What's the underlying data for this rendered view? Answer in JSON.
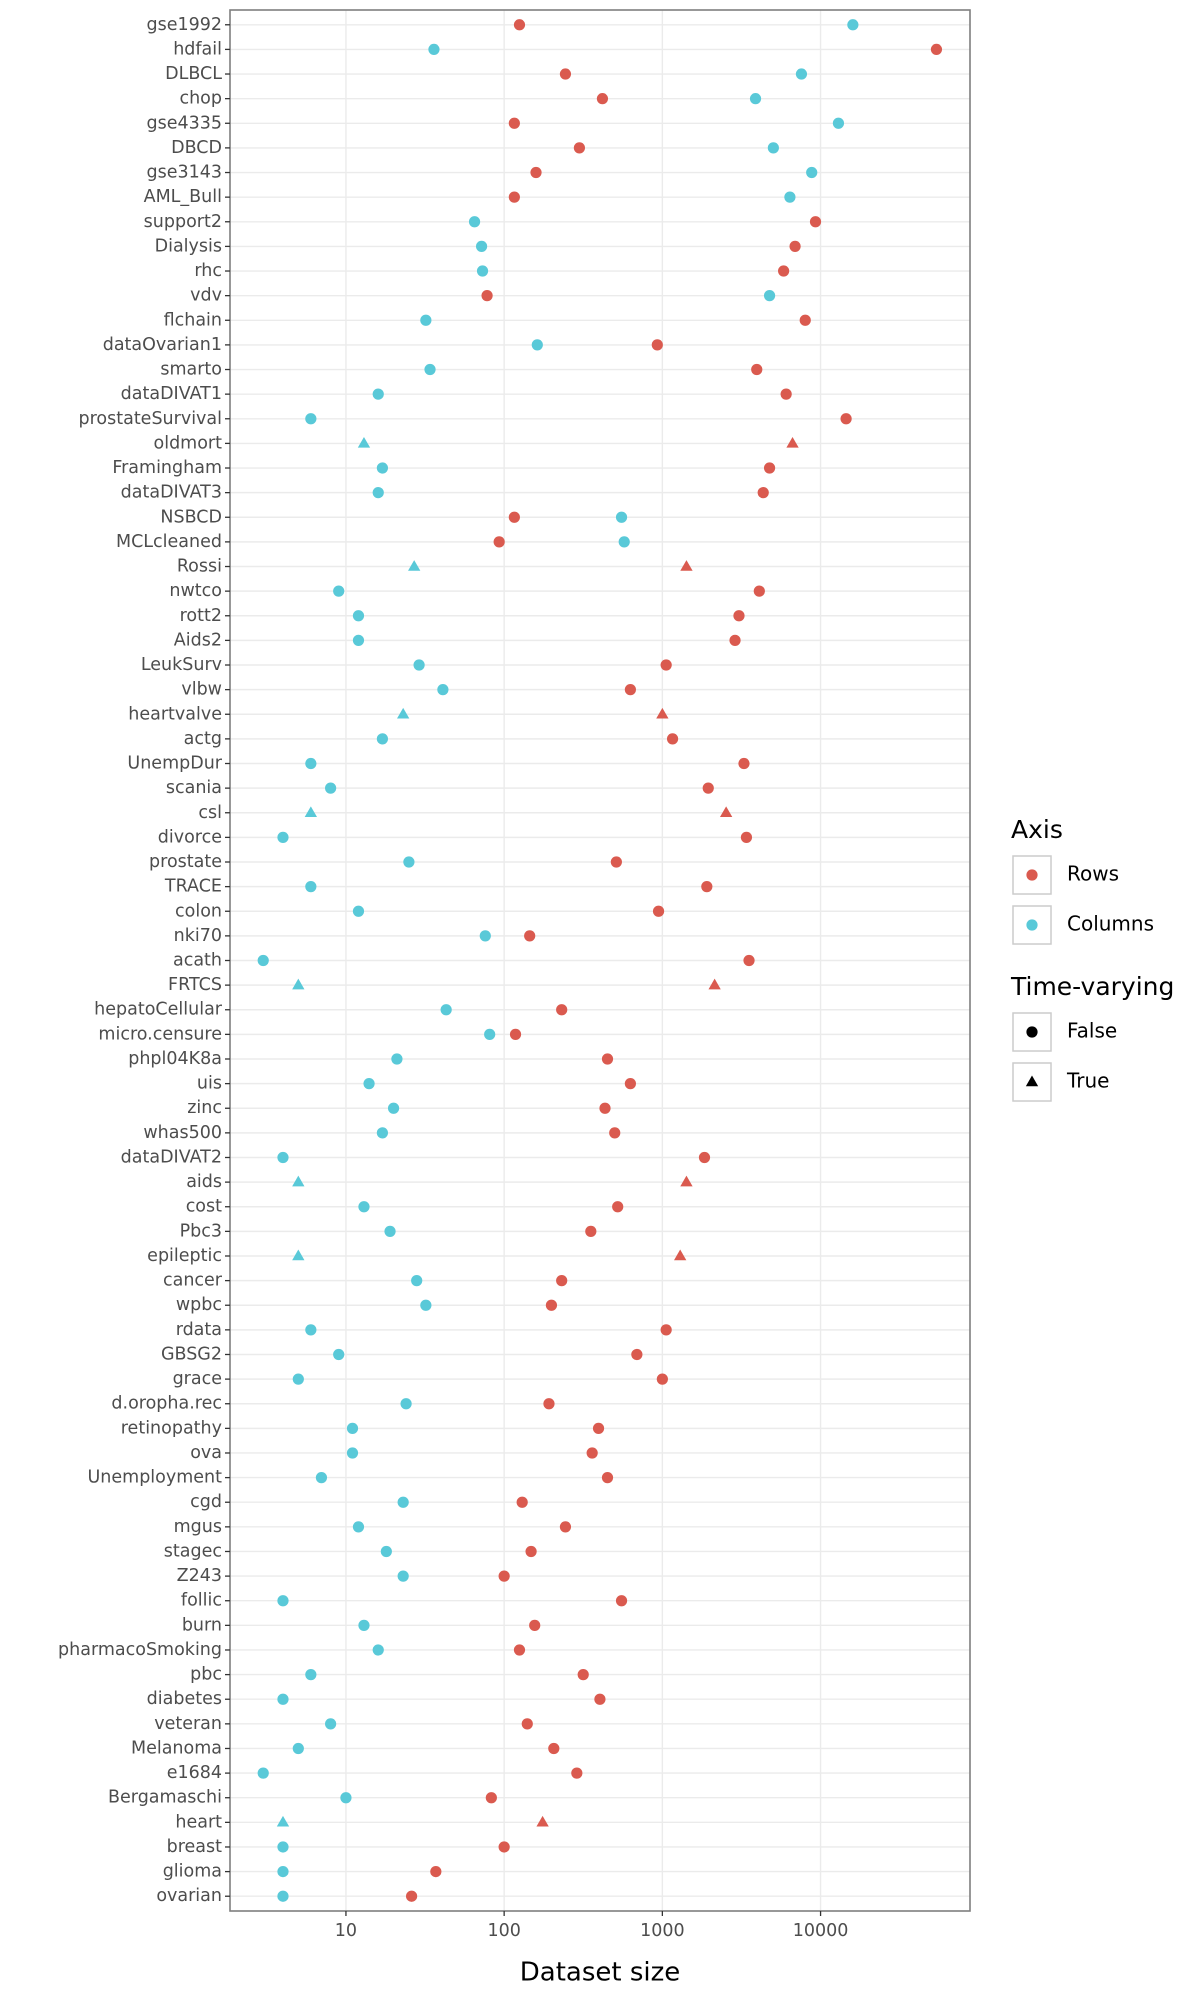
{
  "chart_data": {
    "type": "dot",
    "x_label": "Dataset size",
    "xscale": "log",
    "xlim": [
      1.85,
      88000
    ],
    "xticks": [
      10,
      100,
      1000,
      10000
    ],
    "grid": true,
    "legend_position": "right",
    "color_legend_title": "Axis",
    "shape_legend_title": "Time-varying",
    "shape_labels": [
      "False",
      "True"
    ],
    "categories": [
      "gse1992",
      "hdfail",
      "DLBCL",
      "chop",
      "gse4335",
      "DBCD",
      "gse3143",
      "AML_Bull",
      "support2",
      "Dialysis",
      "rhc",
      "vdv",
      "flchain",
      "dataOvarian1",
      "smarto",
      "dataDIVAT1",
      "prostateSurvival",
      "oldmort",
      "Framingham",
      "dataDIVAT3",
      "NSBCD",
      "MCLcleaned",
      "Rossi",
      "nwtco",
      "rott2",
      "Aids2",
      "LeukSurv",
      "vlbw",
      "heartvalve",
      "actg",
      "UnempDur",
      "scania",
      "csl",
      "divorce",
      "prostate",
      "TRACE",
      "colon",
      "nki70",
      "acath",
      "FRTCS",
      "hepatoCellular",
      "micro.censure",
      "phpl04K8a",
      "uis",
      "zinc",
      "whas500",
      "dataDIVAT2",
      "aids",
      "cost",
      "Pbc3",
      "epileptic",
      "cancer",
      "wpbc",
      "rdata",
      "GBSG2",
      "grace",
      "d.oropha.rec",
      "retinopathy",
      "ova",
      "Unemployment",
      "cgd",
      "mgus",
      "stagec",
      "Z243",
      "follic",
      "burn",
      "pharmacoSmoking",
      "pbc",
      "diabetes",
      "veteran",
      "Melanoma",
      "e1684",
      "Bergamaschi",
      "heart",
      "breast",
      "glioma",
      "ovarian"
    ],
    "time_varying": [
      false,
      false,
      false,
      false,
      false,
      false,
      false,
      false,
      false,
      false,
      false,
      false,
      false,
      false,
      false,
      false,
      false,
      true,
      false,
      false,
      false,
      false,
      true,
      false,
      false,
      false,
      false,
      false,
      true,
      false,
      false,
      false,
      true,
      false,
      false,
      false,
      false,
      false,
      false,
      true,
      false,
      false,
      false,
      false,
      false,
      false,
      false,
      true,
      false,
      false,
      true,
      false,
      false,
      false,
      false,
      false,
      false,
      false,
      false,
      false,
      false,
      false,
      false,
      false,
      false,
      false,
      false,
      false,
      false,
      false,
      false,
      false,
      false,
      true,
      false,
      false,
      false
    ],
    "series": [
      {
        "name": "Rows",
        "color": "#da5a4f",
        "values": [
          125,
          54000,
          244,
          418,
          116,
          299,
          159,
          116,
          9290,
          6900,
          5840,
          78,
          8000,
          929,
          3950,
          6060,
          14500,
          6650,
          4760,
          4340,
          116,
          93,
          1420,
          4100,
          3050,
          2880,
          1057,
          628,
          1000,
          1160,
          3280,
          1950,
          2530,
          3400,
          512,
          1910,
          946,
          145,
          3530,
          2140,
          231,
          118,
          450,
          628,
          434,
          500,
          1846,
          1420,
          522,
          353,
          1296,
          231,
          199,
          1057,
          690,
          1000,
          192,
          395,
          360,
          450,
          130,
          244,
          148,
          100,
          552,
          156,
          125,
          316,
          403,
          140,
          206,
          288,
          83,
          175,
          100,
          37,
          26
        ]
      },
      {
        "name": "Columns",
        "color": "#59c9d8",
        "values": [
          16000,
          36,
          7570,
          3880,
          12970,
          5030,
          8790,
          6400,
          65,
          72,
          73,
          4760,
          32,
          162,
          34,
          16,
          6,
          13,
          17,
          16,
          552,
          574,
          27,
          9,
          12,
          12,
          29,
          41,
          23,
          17,
          6,
          8,
          6,
          4,
          25,
          6,
          12,
          76,
          3,
          5,
          43,
          81,
          21,
          14,
          20,
          17,
          4,
          5,
          13,
          19,
          5,
          28,
          32,
          6,
          9,
          5,
          24,
          11,
          11,
          7,
          23,
          12,
          18,
          23,
          4,
          13,
          16,
          6,
          4,
          8,
          5,
          3,
          10,
          4,
          4,
          4,
          4
        ]
      }
    ]
  }
}
